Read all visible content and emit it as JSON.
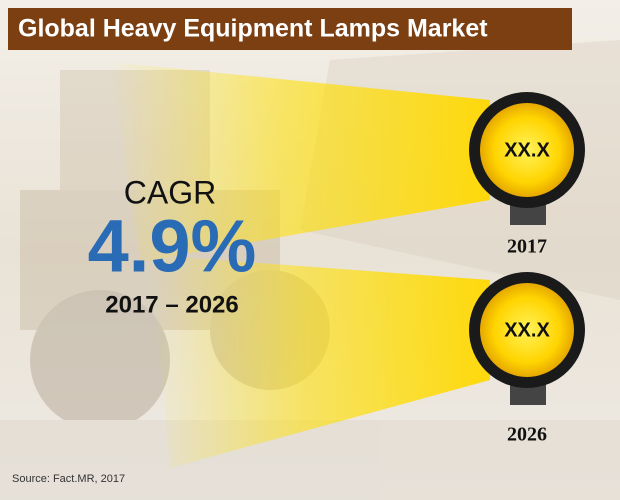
{
  "header": {
    "title": "Global Heavy Equipment Lamps Market"
  },
  "cagr": {
    "label": "CAGR",
    "value": "4.9%",
    "period": "2017 – 2026"
  },
  "lamps": [
    {
      "value": "XX.X",
      "year": "2017"
    },
    {
      "value": "XX.X",
      "year": "2026"
    }
  ],
  "footer": {
    "source": "Source: Fact.MR, 2017"
  }
}
